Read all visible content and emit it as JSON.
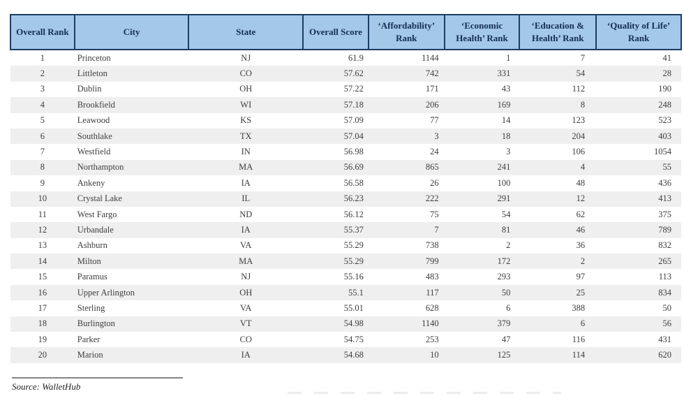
{
  "table": {
    "columns": [
      {
        "key": "overall_rank",
        "label": "Overall Rank"
      },
      {
        "key": "city",
        "label": "City"
      },
      {
        "key": "state",
        "label": "State"
      },
      {
        "key": "overall_score",
        "label": "Overall Score"
      },
      {
        "key": "affordability_rank",
        "label": "‘Affordability’ Rank"
      },
      {
        "key": "economic_health_rank",
        "label": "‘Economic Health’ Rank"
      },
      {
        "key": "education_health_rank",
        "label": "‘Education & Health’ Rank"
      },
      {
        "key": "quality_of_life_rank",
        "label": "‘Quality of Life’ Rank"
      }
    ],
    "rows": [
      [
        "1",
        "Princeton",
        "NJ",
        "61.9",
        "1144",
        "1",
        "7",
        "41"
      ],
      [
        "2",
        "Littleton",
        "CO",
        "57.62",
        "742",
        "331",
        "54",
        "28"
      ],
      [
        "3",
        "Dublin",
        "OH",
        "57.22",
        "171",
        "43",
        "112",
        "190"
      ],
      [
        "4",
        "Brookfield",
        "WI",
        "57.18",
        "206",
        "169",
        "8",
        "248"
      ],
      [
        "5",
        "Leawood",
        "KS",
        "57.09",
        "77",
        "14",
        "123",
        "523"
      ],
      [
        "6",
        "Southlake",
        "TX",
        "57.04",
        "3",
        "18",
        "204",
        "403"
      ],
      [
        "7",
        "Westfield",
        "IN",
        "56.98",
        "24",
        "3",
        "106",
        "1054"
      ],
      [
        "8",
        "Northampton",
        "MA",
        "56.69",
        "865",
        "241",
        "4",
        "55"
      ],
      [
        "9",
        "Ankeny",
        "IA",
        "56.58",
        "26",
        "100",
        "48",
        "436"
      ],
      [
        "10",
        "Crystal Lake",
        "IL",
        "56.23",
        "222",
        "291",
        "12",
        "413"
      ],
      [
        "11",
        "West Fargo",
        "ND",
        "56.12",
        "75",
        "54",
        "62",
        "375"
      ],
      [
        "12",
        "Urbandale",
        "IA",
        "55.37",
        "7",
        "81",
        "46",
        "789"
      ],
      [
        "13",
        "Ashburn",
        "VA",
        "55.29",
        "738",
        "2",
        "36",
        "832"
      ],
      [
        "14",
        "Milton",
        "MA",
        "55.29",
        "799",
        "172",
        "2",
        "265"
      ],
      [
        "15",
        "Paramus",
        "NJ",
        "55.16",
        "483",
        "293",
        "97",
        "113"
      ],
      [
        "16",
        "Upper Arlington",
        "OH",
        "55.1",
        "117",
        "50",
        "25",
        "834"
      ],
      [
        "17",
        "Sterling",
        "VA",
        "55.01",
        "628",
        "6",
        "388",
        "50"
      ],
      [
        "18",
        "Burlington",
        "VT",
        "54.98",
        "1140",
        "379",
        "6",
        "56"
      ],
      [
        "19",
        "Parker",
        "CO",
        "54.75",
        "253",
        "47",
        "116",
        "431"
      ],
      [
        "20",
        "Marion",
        "IA",
        "54.68",
        "10",
        "125",
        "114",
        "620"
      ]
    ]
  },
  "footer": {
    "source_label": "Source: WalletHub"
  },
  "colors": {
    "header_background": "#a4c8e7",
    "header_border": "#1d3d63",
    "header_text": "#132e51",
    "row_alt_background": "#efefef",
    "body_text": "#3d3d3d"
  }
}
